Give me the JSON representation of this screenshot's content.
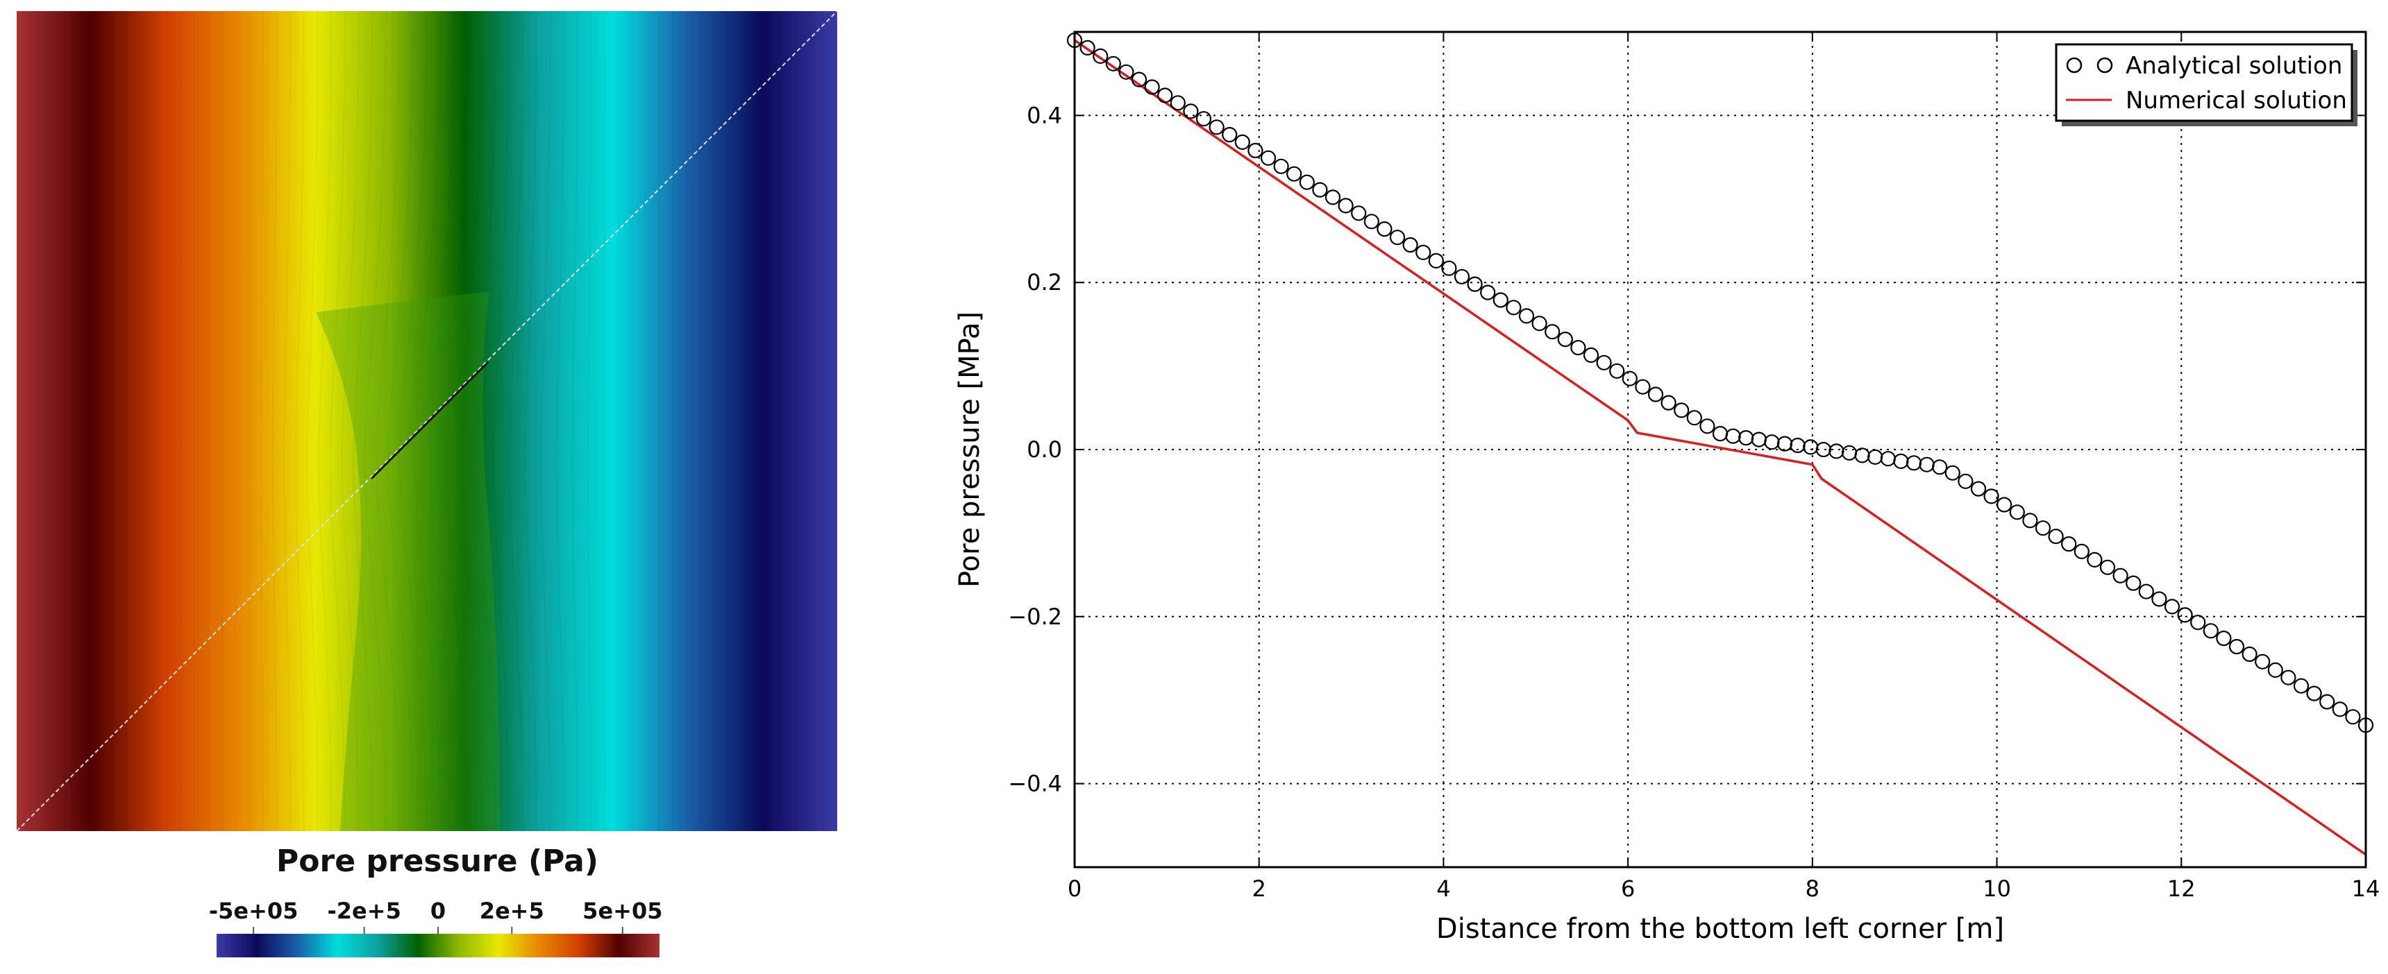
{
  "field_view": {
    "colorbar_title": "Pore pressure (Pa)",
    "colorbar_ticks": [
      "-5e+05",
      "-2e+5",
      "0",
      "2e+5",
      "5e+05"
    ],
    "colorbar_tick_values": [
      -500000,
      -200000,
      0,
      200000,
      500000
    ],
    "range": [
      -600000,
      600000
    ],
    "colormap_stops": [
      "#3b3ba8",
      "#0a0a5a",
      "#1a5fa8",
      "#00dddd",
      "#0da0a0",
      "#006000",
      "#8cb800",
      "#e8e800",
      "#e88800",
      "#d04000",
      "#500000",
      "#a83232"
    ],
    "line_color": "#e0e0e0",
    "fracture_color": "#111111"
  },
  "chart_data": {
    "type": "line",
    "xlabel": "Distance from the bottom left corner [m]",
    "ylabel": "Pore pressure [MPa]",
    "xlim": [
      0,
      14
    ],
    "ylim": [
      -0.5,
      0.5
    ],
    "xticks": [
      0,
      2,
      4,
      6,
      8,
      10,
      12,
      14
    ],
    "yticks": [
      -0.4,
      -0.2,
      0.0,
      0.2,
      0.4
    ],
    "ytick_labels": [
      "−0.4",
      "−0.2",
      "0.0",
      "0.2",
      "0.4"
    ],
    "grid": true,
    "legend_position": "top-right",
    "series": [
      {
        "name": "Analytical solution",
        "style": "markers",
        "marker": "open-circle",
        "color": "#000000",
        "x": [
          0,
          0.14,
          0.28,
          0.42,
          0.56,
          0.7,
          0.84,
          0.98,
          1.12,
          1.26,
          1.4,
          1.54,
          1.68,
          1.82,
          1.96,
          2.1,
          2.24,
          2.38,
          2.52,
          2.66,
          2.8,
          2.94,
          3.08,
          3.22,
          3.36,
          3.5,
          3.64,
          3.78,
          3.92,
          4.06,
          4.2,
          4.34,
          4.48,
          4.62,
          4.76,
          4.9,
          5.04,
          5.18,
          5.32,
          5.46,
          5.6,
          5.74,
          5.88,
          6.02,
          6.16,
          6.3,
          6.44,
          6.58,
          6.72,
          6.86,
          7.0,
          7.14,
          7.28,
          7.42,
          7.56,
          7.7,
          7.84,
          7.98,
          8.12,
          8.26,
          8.4,
          8.54,
          8.68,
          8.82,
          8.96,
          9.1,
          9.24,
          9.38,
          9.52,
          9.66,
          9.8,
          9.94,
          10.08,
          10.22,
          10.36,
          10.5,
          10.64,
          10.78,
          10.92,
          11.06,
          11.2,
          11.34,
          11.48,
          11.62,
          11.76,
          11.9,
          12.04,
          12.18,
          12.32,
          12.46,
          12.6,
          12.74,
          12.88,
          13.02,
          13.16,
          13.3,
          13.44,
          13.58,
          13.72,
          13.86,
          14.0
        ],
        "y": [
          0.49,
          0.481,
          0.471,
          0.462,
          0.452,
          0.443,
          0.434,
          0.424,
          0.415,
          0.405,
          0.396,
          0.386,
          0.377,
          0.368,
          0.358,
          0.349,
          0.339,
          0.33,
          0.32,
          0.311,
          0.302,
          0.292,
          0.283,
          0.273,
          0.264,
          0.254,
          0.245,
          0.236,
          0.226,
          0.217,
          0.207,
          0.198,
          0.188,
          0.179,
          0.17,
          0.16,
          0.151,
          0.141,
          0.132,
          0.122,
          0.113,
          0.104,
          0.094,
          0.085,
          0.075,
          0.066,
          0.056,
          0.047,
          0.038,
          0.028,
          0.019,
          0.016,
          0.014,
          0.012,
          0.009,
          0.007,
          0.005,
          0.003,
          0.0,
          -0.002,
          -0.004,
          -0.007,
          -0.009,
          -0.011,
          -0.014,
          -0.016,
          -0.018,
          -0.021,
          -0.028,
          -0.038,
          -0.047,
          -0.056,
          -0.066,
          -0.075,
          -0.085,
          -0.094,
          -0.104,
          -0.113,
          -0.122,
          -0.132,
          -0.141,
          -0.151,
          -0.16,
          -0.17,
          -0.179,
          -0.188,
          -0.198,
          -0.207,
          -0.217,
          -0.226,
          -0.236,
          -0.245,
          -0.254,
          -0.264,
          -0.273,
          -0.283,
          -0.292,
          -0.302,
          -0.311,
          -0.32,
          -0.33
        ]
      },
      {
        "name": "Numerical solution",
        "style": "line",
        "color": "#d62020",
        "x": [
          0,
          6.0,
          6.1,
          8.0,
          8.1,
          14.0
        ],
        "y": [
          0.49,
          0.035,
          0.02,
          -0.018,
          -0.035,
          -0.485
        ]
      }
    ]
  }
}
